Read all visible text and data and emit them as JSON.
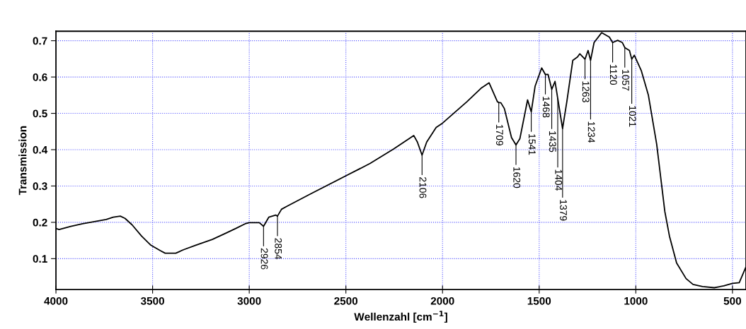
{
  "chart_data": {
    "type": "line",
    "xlabel": "Wellenzahl [cm$^{−1}$]",
    "ylabel": "Transmission",
    "xlim": [
      4000,
      430
    ],
    "ylim": [
      0.015,
      0.726
    ],
    "xticks": [
      4000,
      3500,
      3000,
      2500,
      2000,
      1500,
      1000,
      500
    ],
    "yticks": [
      0.1,
      0.2,
      0.3,
      0.4,
      0.5,
      0.6,
      0.7
    ],
    "grid": true,
    "marker": "none",
    "line_style": "solid",
    "series": [
      {
        "color": "#000000",
        "x": [
          4000,
          3984,
          3923,
          3862,
          3801,
          3740,
          3704,
          3667,
          3643,
          3606,
          3557,
          3509,
          3460,
          3435,
          3380,
          3338,
          3277,
          3191,
          3118,
          3070,
          3021,
          3000,
          2948,
          2926,
          2899,
          2863,
          2854,
          2833,
          2802,
          2680,
          2500,
          2375,
          2253,
          2149,
          2130,
          2106,
          2082,
          2033,
          2000,
          1947,
          1874,
          1801,
          1759,
          1716,
          1709,
          1698,
          1680,
          1643,
          1620,
          1600,
          1560,
          1541,
          1521,
          1487,
          1468,
          1454,
          1435,
          1418,
          1404,
          1379,
          1357,
          1326,
          1302,
          1290,
          1263,
          1247,
          1234,
          1216,
          1177,
          1137,
          1120,
          1094,
          1070,
          1057,
          1033,
          1021,
          1008,
          972,
          935,
          892,
          850,
          826,
          789,
          740,
          704,
          655,
          594,
          545,
          500,
          465,
          432
        ],
        "values": [
          0.183,
          0.18,
          0.189,
          0.196,
          0.202,
          0.208,
          0.214,
          0.217,
          0.211,
          0.193,
          0.162,
          0.137,
          0.122,
          0.115,
          0.115,
          0.125,
          0.137,
          0.153,
          0.171,
          0.183,
          0.196,
          0.199,
          0.199,
          0.189,
          0.214,
          0.22,
          0.217,
          0.236,
          0.245,
          0.279,
          0.328,
          0.362,
          0.402,
          0.439,
          0.421,
          0.385,
          0.421,
          0.461,
          0.473,
          0.498,
          0.532,
          0.569,
          0.584,
          0.532,
          0.53,
          0.529,
          0.513,
          0.433,
          0.413,
          0.43,
          0.537,
          0.504,
          0.575,
          0.625,
          0.607,
          0.607,
          0.566,
          0.588,
          0.541,
          0.458,
          0.532,
          0.646,
          0.655,
          0.664,
          0.649,
          0.673,
          0.646,
          0.695,
          0.722,
          0.71,
          0.695,
          0.701,
          0.695,
          0.681,
          0.673,
          0.649,
          0.66,
          0.618,
          0.55,
          0.415,
          0.23,
          0.162,
          0.088,
          0.045,
          0.029,
          0.023,
          0.02,
          0.025,
          0.032,
          0.034,
          0.075
        ]
      }
    ],
    "annotations": [
      {
        "text": "2926",
        "x": 2926,
        "y": 0.189
      },
      {
        "text": "2854",
        "x": 2854,
        "y": 0.217
      },
      {
        "text": "2106",
        "x": 2106,
        "y": 0.385
      },
      {
        "text": "1709",
        "x": 1709,
        "y": 0.53
      },
      {
        "text": "1620",
        "x": 1620,
        "y": 0.413
      },
      {
        "text": "1541",
        "x": 1541,
        "y": 0.504
      },
      {
        "text": "1468",
        "x": 1468,
        "y": 0.607
      },
      {
        "text": "1435",
        "x": 1435,
        "y": 0.566
      },
      {
        "text": "1404",
        "x": 1404,
        "y": 0.541
      },
      {
        "text": "1379",
        "x": 1379,
        "y": 0.458
      },
      {
        "text": "1263",
        "x": 1263,
        "y": 0.649
      },
      {
        "text": "1234",
        "x": 1234,
        "y": 0.646
      },
      {
        "text": "1120",
        "x": 1120,
        "y": 0.695
      },
      {
        "text": "1057",
        "x": 1057,
        "y": 0.681
      },
      {
        "text": "1021",
        "x": 1021,
        "y": 0.649
      }
    ]
  }
}
